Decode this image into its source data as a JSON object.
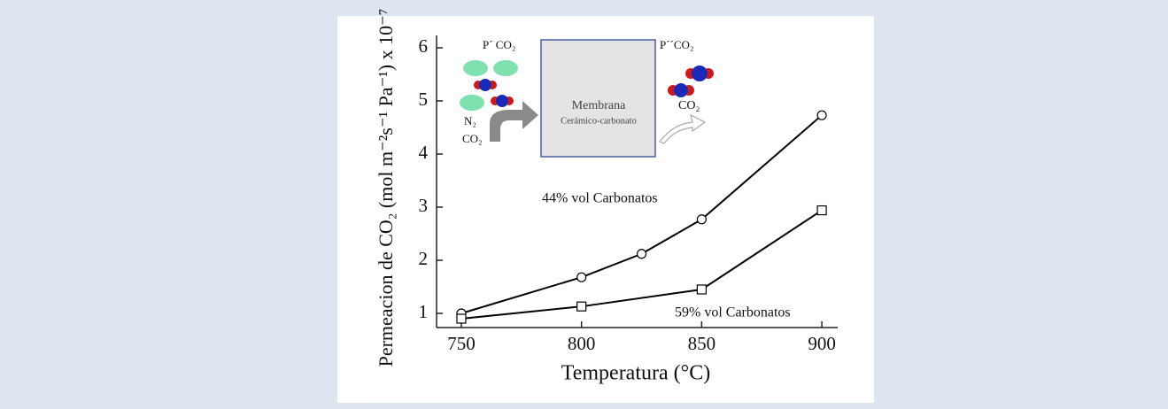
{
  "chart_data": {
    "type": "line",
    "x_label": "Temperatura (°C)",
    "y_label": "Permeacion de CO₂ (mol m⁻²s⁻¹ Pa⁻¹) x 10⁻⁷",
    "x": [
      750,
      800,
      825,
      850,
      900
    ],
    "series": [
      {
        "name": "44% vol Carbonatos",
        "color": "#000000",
        "marker": "circle",
        "values": [
          1.0,
          1.68,
          2.12,
          2.77,
          4.73
        ]
      },
      {
        "name": "59% vol Carbonatos",
        "color": "#000000",
        "marker": "square",
        "values": [
          0.9,
          1.13,
          null,
          1.45,
          2.94
        ]
      }
    ],
    "xlim": [
      739.7,
      906.6
    ],
    "xticks": [
      750,
      800,
      850,
      900
    ],
    "ylim": [
      0.733,
      6.233
    ],
    "yticks": [
      1,
      2,
      3,
      4,
      5,
      6
    ],
    "inset": {
      "feed_pressure": "P´ CO₂",
      "permeate_pressure": "P´´CO₂",
      "membrane": "Membrana",
      "membrane_type": "Cerámico-carbonato",
      "feed_n2": "N₂",
      "feed_co2": "CO₂",
      "permeate_co2": "CO₂"
    }
  }
}
